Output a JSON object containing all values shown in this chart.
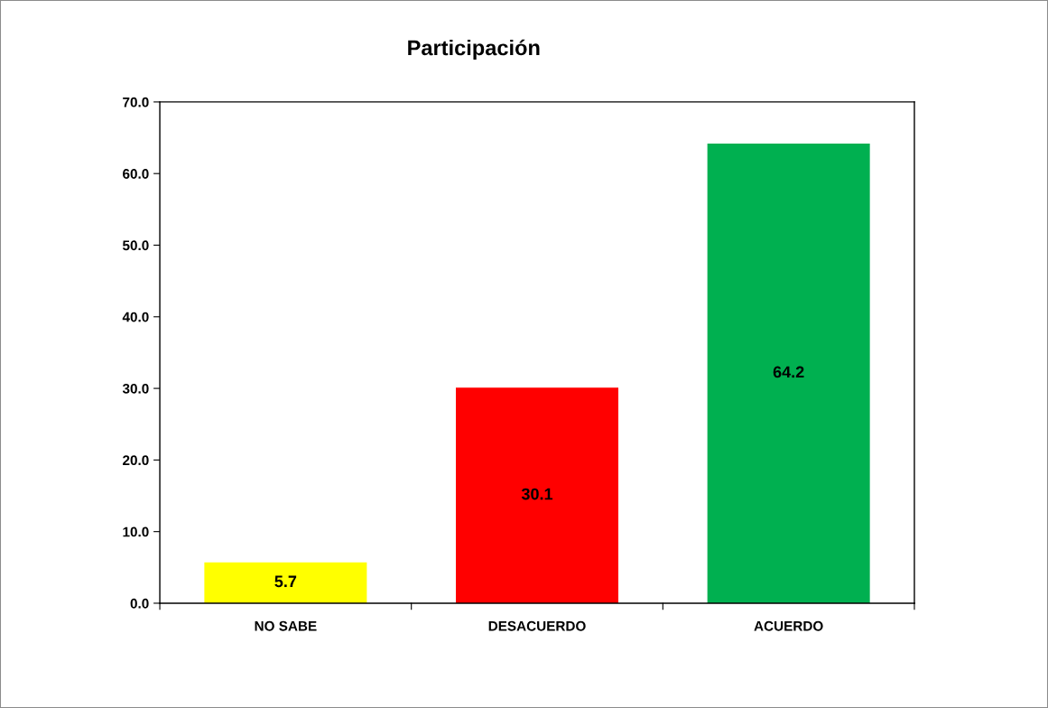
{
  "chart_data": {
    "type": "bar",
    "title": "Participación",
    "categories": [
      "NO SABE",
      "DESACUERDO",
      "ACUERDO"
    ],
    "values": [
      5.7,
      30.1,
      64.2
    ],
    "colors": [
      "#ffff00",
      "#ff0000",
      "#00b050"
    ],
    "ylim": [
      0,
      70
    ],
    "yticks": [
      {
        "value": 0,
        "label": "0.0"
      },
      {
        "value": 10,
        "label": "10.0"
      },
      {
        "value": 20,
        "label": "20.0"
      },
      {
        "value": 30,
        "label": "30.0"
      },
      {
        "value": 40,
        "label": "40.0"
      },
      {
        "value": 50,
        "label": "50.0"
      },
      {
        "value": 60,
        "label": "60.0"
      },
      {
        "value": 70,
        "label": "70.0"
      }
    ],
    "data_labels": true,
    "grid": false,
    "legend": false
  }
}
